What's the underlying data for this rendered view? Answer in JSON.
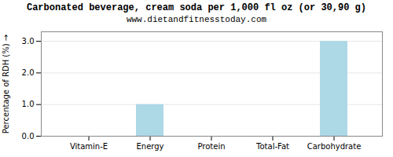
{
  "chart_data": {
    "type": "bar",
    "title": "Carbonated beverage, cream soda per 1,000 fl oz (or 30,90 g)",
    "subtitle": "www.dietandfitnesstoday.com",
    "categories": [
      "Vitamin-E",
      "Energy",
      "Protein",
      "Total-Fat",
      "Carbohydrate"
    ],
    "values": [
      0.0,
      1.0,
      0.0,
      0.0,
      3.0
    ],
    "color": "#add8e6",
    "ylabel": "Percentage of RDH (%)",
    "ylim": [
      0,
      3.3
    ],
    "yticks": [
      {
        "value": 0.0,
        "label": "0.0"
      },
      {
        "value": 1.0,
        "label": "1.0"
      },
      {
        "value": 2.0,
        "label": "2.0"
      },
      {
        "value": 3.0,
        "label": "3.0"
      }
    ],
    "grid": true
  }
}
